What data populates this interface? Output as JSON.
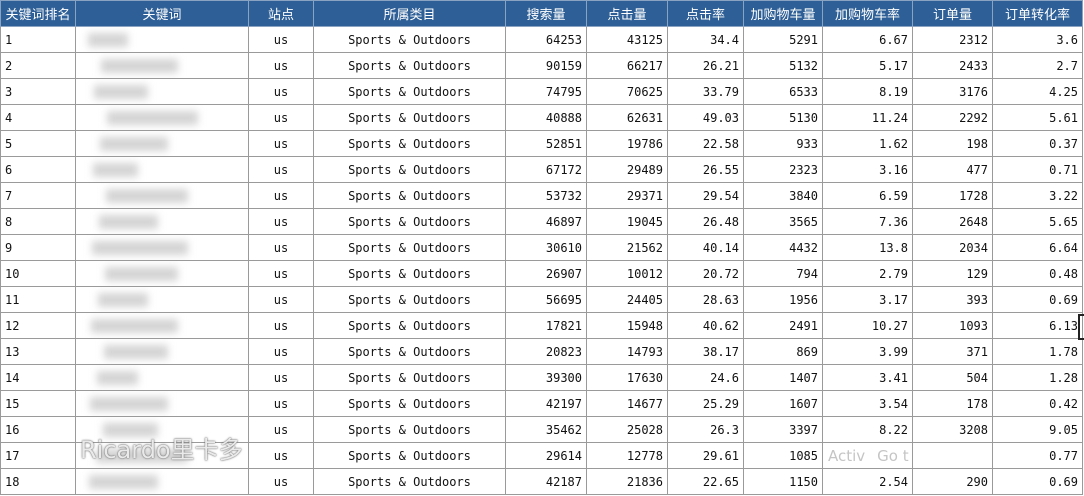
{
  "table": {
    "headers": [
      "关键词排名",
      "关键词",
      "站点",
      "所属类目",
      "搜索量",
      "点击量",
      "点击率",
      "加购物车量",
      "加购物车率",
      "订单量",
      "订单转化率"
    ],
    "rows": [
      [
        "1",
        "",
        "us",
        "Sports & Outdoors",
        "64253",
        "43125",
        "34.4",
        "5291",
        "6.67",
        "2312",
        "3.6"
      ],
      [
        "2",
        "",
        "us",
        "Sports & Outdoors",
        "90159",
        "66217",
        "26.21",
        "5132",
        "5.17",
        "2433",
        "2.7"
      ],
      [
        "3",
        "",
        "us",
        "Sports & Outdoors",
        "74795",
        "70625",
        "33.79",
        "6533",
        "8.19",
        "3176",
        "4.25"
      ],
      [
        "4",
        "",
        "us",
        "Sports & Outdoors",
        "40888",
        "62631",
        "49.03",
        "5130",
        "11.24",
        "2292",
        "5.61"
      ],
      [
        "5",
        "",
        "us",
        "Sports & Outdoors",
        "52851",
        "19786",
        "22.58",
        "933",
        "1.62",
        "198",
        "0.37"
      ],
      [
        "6",
        "",
        "us",
        "Sports & Outdoors",
        "67172",
        "29489",
        "26.55",
        "2323",
        "3.16",
        "477",
        "0.71"
      ],
      [
        "7",
        "",
        "us",
        "Sports & Outdoors",
        "53732",
        "29371",
        "29.54",
        "3840",
        "6.59",
        "1728",
        "3.22"
      ],
      [
        "8",
        "",
        "us",
        "Sports & Outdoors",
        "46897",
        "19045",
        "26.48",
        "3565",
        "7.36",
        "2648",
        "5.65"
      ],
      [
        "9",
        "",
        "us",
        "Sports & Outdoors",
        "30610",
        "21562",
        "40.14",
        "4432",
        "13.8",
        "2034",
        "6.64"
      ],
      [
        "10",
        "",
        "us",
        "Sports & Outdoors",
        "26907",
        "10012",
        "20.72",
        "794",
        "2.79",
        "129",
        "0.48"
      ],
      [
        "11",
        "",
        "us",
        "Sports & Outdoors",
        "56695",
        "24405",
        "28.63",
        "1956",
        "3.17",
        "393",
        "0.69"
      ],
      [
        "12",
        "",
        "us",
        "Sports & Outdoors",
        "17821",
        "15948",
        "40.62",
        "2491",
        "10.27",
        "1093",
        "6.13"
      ],
      [
        "13",
        "",
        "us",
        "Sports & Outdoors",
        "20823",
        "14793",
        "38.17",
        "869",
        "3.99",
        "371",
        "1.78"
      ],
      [
        "14",
        "",
        "us",
        "Sports & Outdoors",
        "39300",
        "17630",
        "24.6",
        "1407",
        "3.41",
        "504",
        "1.28"
      ],
      [
        "15",
        "",
        "us",
        "Sports & Outdoors",
        "42197",
        "14677",
        "25.29",
        "1607",
        "3.54",
        "178",
        "0.42"
      ],
      [
        "16",
        "",
        "us",
        "Sports & Outdoors",
        "35462",
        "25028",
        "26.3",
        "3397",
        "8.22",
        "3208",
        "9.05"
      ],
      [
        "17",
        "",
        "us",
        "Sports & Outdoors",
        "29614",
        "12778",
        "29.61",
        "1085",
        "",
        "",
        "0.77"
      ],
      [
        "18",
        "",
        "us",
        "Sports & Outdoors",
        "42187",
        "21836",
        "22.65",
        "1150",
        "2.54",
        "290",
        "0.69"
      ]
    ]
  },
  "watermark": "Ricardo里卡多",
  "activation": [
    "Activ",
    "Go t"
  ]
}
